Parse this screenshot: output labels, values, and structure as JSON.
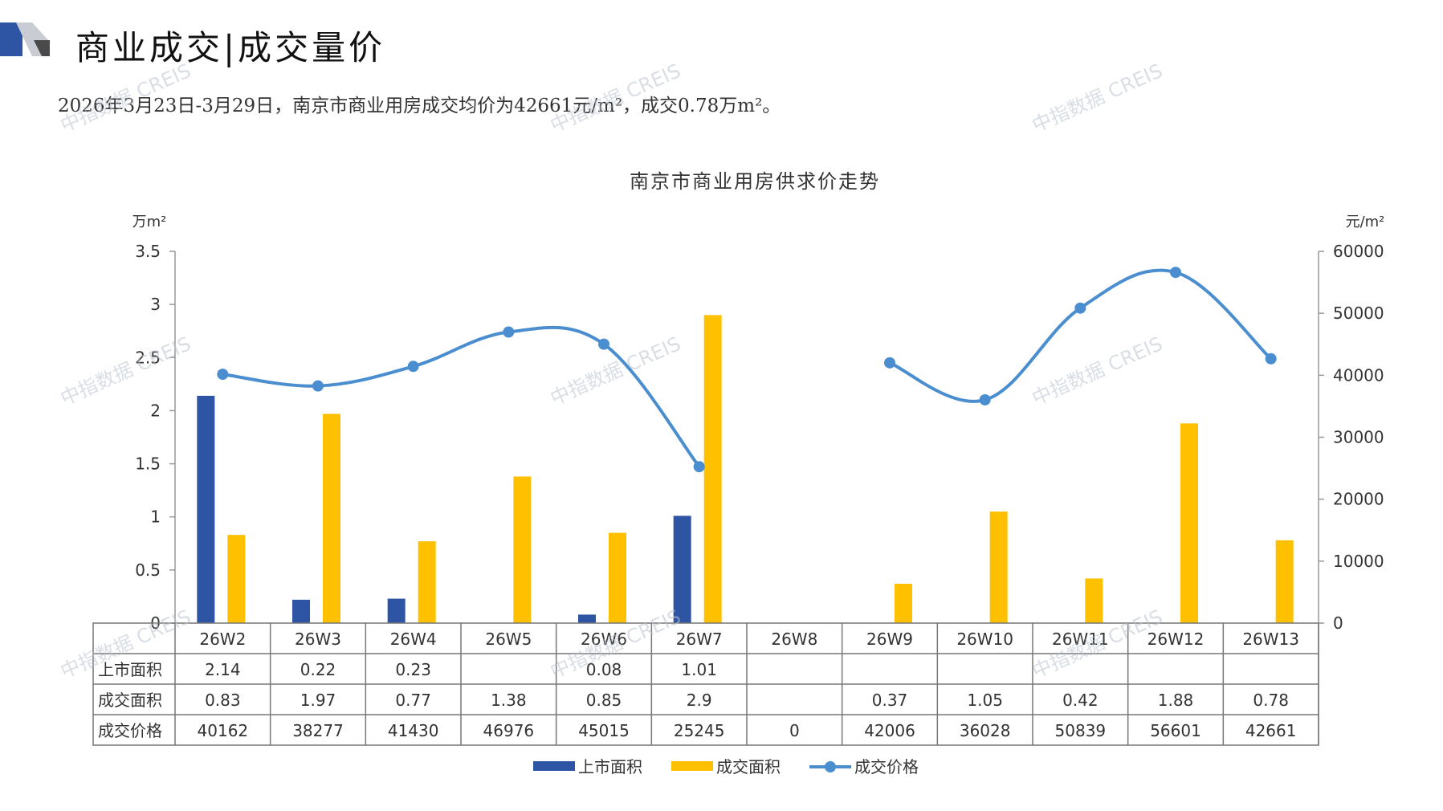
{
  "header": {
    "title": "商业成交|成交量价",
    "summary": "2026年3月23日-3月29日，南京市商业用房成交均价为42661元/m²，成交0.78万m²。"
  },
  "watermark": {
    "text": "中指数据 CREIS",
    "color": "#b9c3cf"
  },
  "colors": {
    "listing": "#2e55a4",
    "deal_area": "#ffc000",
    "price": "#4a8ed0",
    "grid": "#999999",
    "accent_light": "#c9ccd2"
  },
  "chart_data": {
    "type": "bar",
    "title": "南京市商业用房供求价走势",
    "y_left_label": "万m²",
    "y_right_label": "元/m²",
    "y_left_ticks": [
      "0",
      "0.5",
      "1",
      "1.5",
      "2",
      "2.5",
      "3",
      "3.5"
    ],
    "y_right_ticks": [
      "0",
      "10000",
      "20000",
      "30000",
      "40000",
      "50000",
      "60000"
    ],
    "ylim_left": [
      0,
      3.5
    ],
    "ylim_right": [
      0,
      60000
    ],
    "categories": [
      "26W2",
      "26W3",
      "26W4",
      "26W5",
      "26W6",
      "26W7",
      "26W8",
      "26W9",
      "26W10",
      "26W11",
      "26W12",
      "26W13"
    ],
    "series": [
      {
        "name": "上市面积",
        "type": "bar",
        "axis": "left",
        "color": "#2e55a4",
        "values": [
          2.14,
          0.22,
          0.23,
          null,
          0.08,
          1.01,
          null,
          null,
          null,
          null,
          null,
          null
        ]
      },
      {
        "name": "成交面积",
        "type": "bar",
        "axis": "left",
        "color": "#ffc000",
        "values": [
          0.83,
          1.97,
          0.77,
          1.38,
          0.85,
          2.9,
          null,
          0.37,
          1.05,
          0.42,
          1.88,
          0.78
        ]
      },
      {
        "name": "成交价格",
        "type": "line",
        "axis": "right",
        "color": "#4a8ed0",
        "values": [
          40162,
          38277,
          41430,
          46976,
          45015,
          25245,
          0,
          42006,
          36028,
          50839,
          56601,
          42661
        ]
      }
    ],
    "legend_position": "bottom"
  }
}
